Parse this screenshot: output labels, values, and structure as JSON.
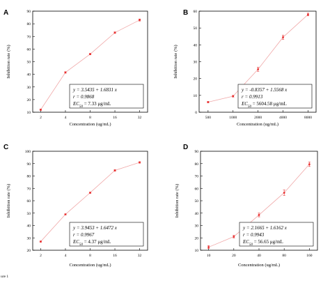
{
  "footer_label": "ure 1",
  "chart_data": [
    {
      "panel": "A",
      "type": "line",
      "xscale": "log",
      "x": [
        2,
        4,
        8,
        16,
        32
      ],
      "x_ticks": [
        2,
        4,
        8,
        16,
        32
      ],
      "x_tick_labels": [
        "2",
        "4",
        "8",
        "16",
        "32"
      ],
      "y": [
        12.0,
        41.5,
        56.0,
        73.0,
        83.0
      ],
      "yerr": [
        0.6,
        0.6,
        0.6,
        0.6,
        0.8
      ],
      "ylim": [
        10,
        90
      ],
      "y_ticks": [
        10,
        20,
        30,
        40,
        50,
        60,
        70,
        80,
        90
      ],
      "x_range": [
        1.6,
        40
      ],
      "xlabel": "Concentration (ug/mL)",
      "ylabel": "Inhibition rate (%)",
      "legend_placement": "bottom-right",
      "equation": {
        "y": "y = 3.5435 + 1.6831 x",
        "r": "r = 0.9868",
        "ec_prefix": "EC",
        "ec_sub": "50",
        "ec_value": " = 7.33 μg/mL"
      }
    },
    {
      "panel": "B",
      "type": "line",
      "xscale": "log",
      "x": [
        500,
        1000,
        2000,
        4000,
        8000
      ],
      "x_ticks": [
        500,
        1000,
        2000,
        4000,
        8000
      ],
      "x_tick_labels": [
        "500",
        "1000",
        "2000",
        "4000",
        "8000"
      ],
      "y": [
        6.0,
        9.5,
        25.5,
        44.5,
        58.0
      ],
      "yerr": [
        0.4,
        0.5,
        1.2,
        1.2,
        0.8
      ],
      "ylim": [
        0,
        60
      ],
      "y_ticks": [
        0,
        10,
        20,
        30,
        40,
        50,
        60
      ],
      "x_range": [
        390,
        10000
      ],
      "xlabel": "Concentration (ug/mL)",
      "ylabel": "Inhibition rate (%)",
      "legend_placement": "bottom-right",
      "equation": {
        "y": "y = -0.8357 + 1.5568 x",
        "r": "r = 0.9913",
        "ec_prefix": "EC",
        "ec_sub": "50",
        "ec_value": " = 5604.58 μg/mL"
      }
    },
    {
      "panel": "C",
      "type": "line",
      "xscale": "log",
      "x": [
        2,
        4,
        8,
        16,
        32
      ],
      "x_ticks": [
        2,
        4,
        8,
        16,
        32
      ],
      "x_tick_labels": [
        "2",
        "4",
        "8",
        "16",
        "32"
      ],
      "y": [
        27.0,
        49.0,
        66.5,
        84.5,
        91.0
      ],
      "yerr": [
        0.4,
        0.4,
        0.5,
        0.6,
        0.6
      ],
      "ylim": [
        20,
        100
      ],
      "y_ticks": [
        20,
        30,
        40,
        50,
        60,
        70,
        80,
        90,
        100
      ],
      "x_range": [
        1.6,
        40
      ],
      "xlabel": "Concentration (ug/mL)",
      "ylabel": "Inhibition rate (%)",
      "legend_placement": "bottom-right",
      "equation": {
        "y": "y = 3.9453 + 1.6472 x",
        "r": "r = 0.9967",
        "ec_prefix": "EC",
        "ec_sub": "50",
        "ec_value": " = 4.37 μg/mL"
      }
    },
    {
      "panel": "D",
      "type": "line",
      "xscale": "log",
      "x": [
        10,
        20,
        40,
        80,
        160
      ],
      "x_ticks": [
        10,
        20,
        40,
        80,
        160
      ],
      "x_tick_labels": [
        "10",
        "20",
        "40",
        "80",
        "160"
      ],
      "y": [
        12.5,
        21.0,
        38.5,
        56.5,
        79.5
      ],
      "yerr": [
        1.2,
        1.0,
        1.5,
        2.2,
        1.8
      ],
      "ylim": [
        10,
        90
      ],
      "y_ticks": [
        10,
        20,
        30,
        40,
        50,
        60,
        70,
        80,
        90
      ],
      "x_range": [
        8,
        200
      ],
      "xlabel": "Concentration (ug/mL)",
      "ylabel": "Inhibition rate (%)",
      "legend_placement": "bottom-right",
      "equation": {
        "y": "y = 2.1665 + 1.6162 x",
        "r": "r = 0.9943",
        "ec_prefix": "EC",
        "ec_sub": "50",
        "ec_value": " = 56.65 μg/mL"
      }
    }
  ]
}
